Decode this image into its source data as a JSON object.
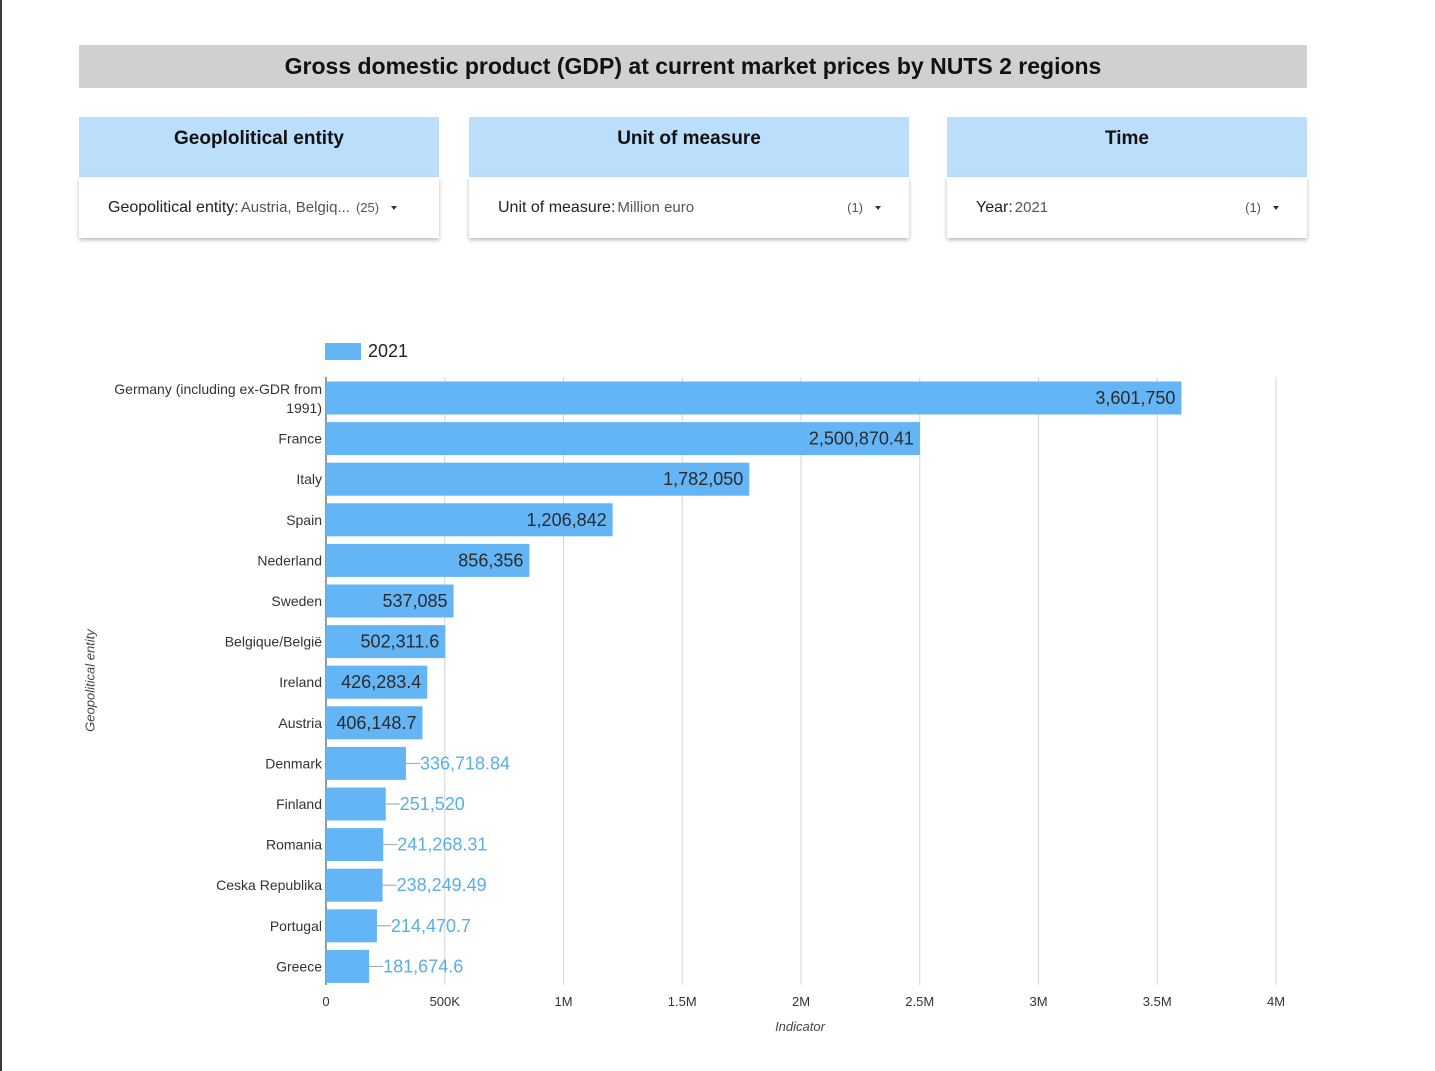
{
  "header": {
    "title": "Gross domestic product (GDP) at current market prices by NUTS 2 regions"
  },
  "filters": [
    {
      "heading": "Geoplolitical entity",
      "key": "Geopolitical entity",
      "value": "Austria, Belgiq...",
      "count": "(25)"
    },
    {
      "heading": "Unit of measure",
      "key": "Unit of measure",
      "value": "Million euro",
      "count": "(1)"
    },
    {
      "heading": "Time",
      "key": "Year",
      "value": "2021",
      "count": "(1)"
    }
  ],
  "chart_data": {
    "type": "bar",
    "orientation": "horizontal",
    "title": "",
    "xlabel": "Indicator",
    "ylabel": "Geopolitical entity",
    "xlim": [
      0,
      4000000
    ],
    "x_ticks": [
      0,
      500000,
      1000000,
      1500000,
      2000000,
      2500000,
      3000000,
      3500000,
      4000000
    ],
    "x_tick_labels": [
      "0",
      "500K",
      "1M",
      "1.5M",
      "2M",
      "2.5M",
      "3M",
      "3.5M",
      "4M"
    ],
    "grid": true,
    "legend": "top-left",
    "categories": [
      "Germany (including ex-GDR from 1991)",
      "France",
      "Italy",
      "Spain",
      "Nederland",
      "Sweden",
      "Belgique/België",
      "Ireland",
      "Austria",
      "Denmark",
      "Finland",
      "Romania",
      "Ceska Republika",
      "Portugal",
      "Greece"
    ],
    "series": [
      {
        "name": "2021",
        "color": "#64b5f6",
        "values": [
          3601750,
          2500870.41,
          1782050,
          1206842,
          856356,
          537085,
          502311.6,
          426283.4,
          406148.7,
          336718.84,
          251520,
          241268.31,
          238249.49,
          214470.7,
          181674.6
        ],
        "value_labels": [
          "3,601,750",
          "2,500,870.41",
          "1,782,050",
          "1,206,842",
          "856,356",
          "537,085",
          "502,311.6",
          "426,283.4",
          "406,148.7",
          "336,718.84",
          "251,520",
          "241,268.31",
          "238,249.49",
          "214,470.7",
          "181,674.6"
        ]
      }
    ]
  }
}
